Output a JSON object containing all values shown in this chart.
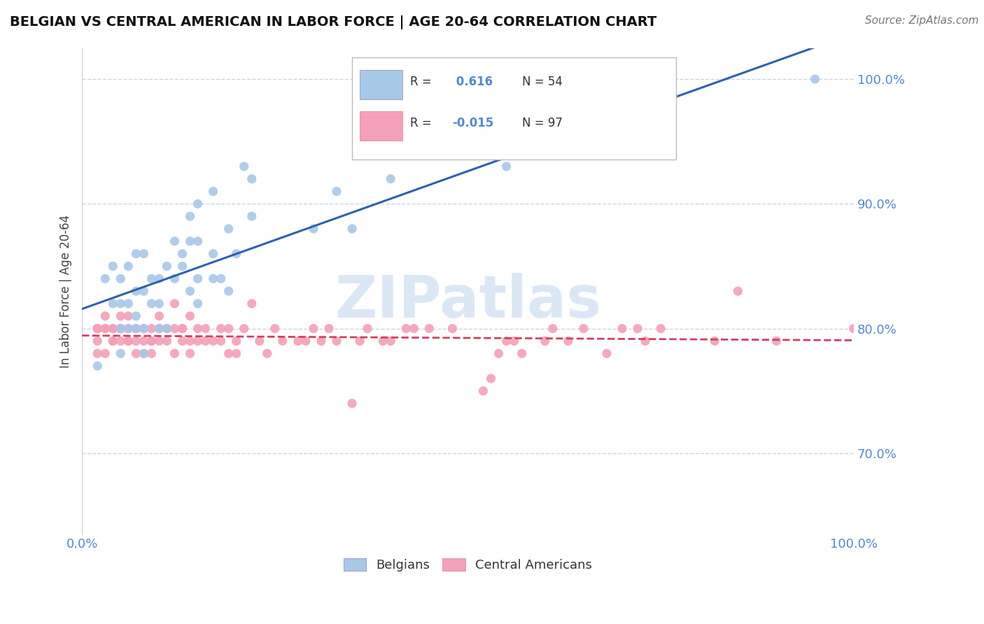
{
  "title": "BELGIAN VS CENTRAL AMERICAN IN LABOR FORCE | AGE 20-64 CORRELATION CHART",
  "source": "Source: ZipAtlas.com",
  "ylabel": "In Labor Force | Age 20-64",
  "xlim": [
    0.0,
    1.0
  ],
  "ylim": [
    0.635,
    1.025
  ],
  "yticks": [
    0.7,
    0.8,
    0.9,
    1.0
  ],
  "ytick_labels": [
    "70.0%",
    "80.0%",
    "90.0%",
    "100.0%"
  ],
  "xticks": [
    0.0,
    0.2,
    0.4,
    0.6,
    0.8,
    1.0
  ],
  "xtick_labels": [
    "0.0%",
    "",
    "",
    "",
    "",
    "100.0%"
  ],
  "belgian_R": 0.616,
  "belgian_N": 54,
  "central_R": -0.015,
  "central_N": 97,
  "belgian_color": "#a8c8e8",
  "central_color": "#f4a0b8",
  "belgian_line_color": "#3060b0",
  "central_line_color": "#d04060",
  "watermark": "ZIPatlas",
  "background_color": "#ffffff",
  "grid_color": "#c8d4e8",
  "tick_color": "#5588cc",
  "belgian_x": [
    0.02,
    0.03,
    0.04,
    0.04,
    0.05,
    0.05,
    0.05,
    0.05,
    0.06,
    0.06,
    0.06,
    0.07,
    0.07,
    0.07,
    0.07,
    0.08,
    0.08,
    0.08,
    0.08,
    0.09,
    0.09,
    0.1,
    0.1,
    0.1,
    0.11,
    0.11,
    0.12,
    0.12,
    0.13,
    0.13,
    0.14,
    0.14,
    0.14,
    0.15,
    0.15,
    0.15,
    0.15,
    0.17,
    0.17,
    0.17,
    0.18,
    0.19,
    0.19,
    0.2,
    0.21,
    0.22,
    0.22,
    0.3,
    0.33,
    0.35,
    0.4,
    0.55,
    0.7,
    0.95
  ],
  "belgian_y": [
    0.77,
    0.84,
    0.82,
    0.85,
    0.78,
    0.8,
    0.82,
    0.84,
    0.8,
    0.82,
    0.85,
    0.8,
    0.81,
    0.83,
    0.86,
    0.78,
    0.8,
    0.83,
    0.86,
    0.82,
    0.84,
    0.8,
    0.82,
    0.84,
    0.8,
    0.85,
    0.84,
    0.87,
    0.85,
    0.86,
    0.83,
    0.87,
    0.89,
    0.82,
    0.84,
    0.87,
    0.9,
    0.84,
    0.86,
    0.91,
    0.84,
    0.83,
    0.88,
    0.86,
    0.93,
    0.89,
    0.92,
    0.88,
    0.91,
    0.88,
    0.92,
    0.93,
    0.95,
    1.0
  ],
  "central_x": [
    0.02,
    0.02,
    0.02,
    0.02,
    0.02,
    0.03,
    0.03,
    0.03,
    0.03,
    0.04,
    0.04,
    0.04,
    0.04,
    0.05,
    0.05,
    0.05,
    0.05,
    0.05,
    0.06,
    0.06,
    0.06,
    0.06,
    0.07,
    0.07,
    0.07,
    0.08,
    0.08,
    0.08,
    0.09,
    0.09,
    0.09,
    0.09,
    0.1,
    0.1,
    0.1,
    0.11,
    0.11,
    0.12,
    0.12,
    0.12,
    0.13,
    0.13,
    0.13,
    0.14,
    0.14,
    0.14,
    0.15,
    0.15,
    0.16,
    0.16,
    0.17,
    0.18,
    0.18,
    0.19,
    0.19,
    0.2,
    0.2,
    0.21,
    0.22,
    0.23,
    0.24,
    0.25,
    0.26,
    0.28,
    0.29,
    0.3,
    0.31,
    0.32,
    0.33,
    0.35,
    0.36,
    0.37,
    0.39,
    0.4,
    0.42,
    0.43,
    0.45,
    0.48,
    0.52,
    0.53,
    0.54,
    0.55,
    0.56,
    0.57,
    0.6,
    0.61,
    0.63,
    0.65,
    0.68,
    0.7,
    0.72,
    0.73,
    0.75,
    0.82,
    0.85,
    0.9,
    1.0
  ],
  "central_y": [
    0.8,
    0.8,
    0.8,
    0.79,
    0.78,
    0.78,
    0.8,
    0.8,
    0.81,
    0.79,
    0.79,
    0.8,
    0.8,
    0.79,
    0.8,
    0.8,
    0.8,
    0.81,
    0.79,
    0.79,
    0.8,
    0.81,
    0.78,
    0.79,
    0.8,
    0.78,
    0.79,
    0.8,
    0.78,
    0.79,
    0.79,
    0.8,
    0.79,
    0.8,
    0.81,
    0.79,
    0.8,
    0.78,
    0.8,
    0.82,
    0.79,
    0.8,
    0.8,
    0.78,
    0.79,
    0.81,
    0.79,
    0.8,
    0.79,
    0.8,
    0.79,
    0.79,
    0.8,
    0.78,
    0.8,
    0.78,
    0.79,
    0.8,
    0.82,
    0.79,
    0.78,
    0.8,
    0.79,
    0.79,
    0.79,
    0.8,
    0.79,
    0.8,
    0.79,
    0.74,
    0.79,
    0.8,
    0.79,
    0.79,
    0.8,
    0.8,
    0.8,
    0.8,
    0.75,
    0.76,
    0.78,
    0.79,
    0.79,
    0.78,
    0.79,
    0.8,
    0.79,
    0.8,
    0.78,
    0.8,
    0.8,
    0.79,
    0.8,
    0.79,
    0.83,
    0.79,
    0.8
  ]
}
